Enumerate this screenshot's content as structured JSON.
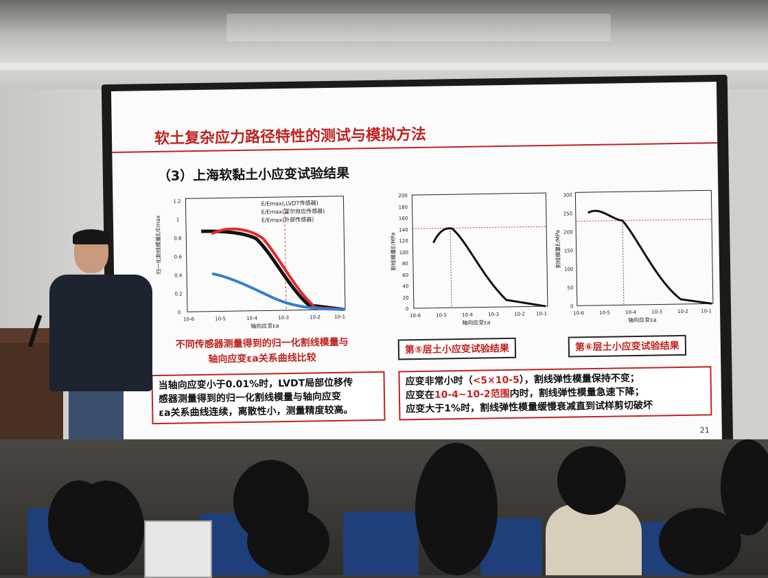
{
  "slide": {
    "title": "软土复杂应力路径特性的测试与模拟方法",
    "section": "（3）上海软黏土小应变试验结果",
    "page_number": "21",
    "left_chart": {
      "legend": [
        "E/Emax( LVDT传感器)",
        "E/Emax(霍尔效应传感器)",
        "E/Emax(外部传感器)"
      ],
      "ylabel": "归一化割线模量E/Emax",
      "xlabel": "轴向应变εa",
      "yticks": [
        "0",
        "0.2",
        "0.4",
        "0.6",
        "0.8",
        "1",
        "1.2"
      ],
      "xticks": [
        "10-6",
        "10-5",
        "10-4",
        "10-3",
        "10-2",
        "10-1"
      ],
      "caption_line1": "不同传感器测量得到的归一化割线模量与",
      "caption_line2": "轴向应变εa关系曲线比较"
    },
    "mid_chart": {
      "ylabel": "割线模量E/MPa",
      "xlabel": "轴向应变εa",
      "yticks": [
        "0",
        "20",
        "40",
        "60",
        "80",
        "100",
        "120",
        "140",
        "160",
        "180",
        "200"
      ],
      "xticks": [
        "10-6",
        "10-5",
        "10-4",
        "10-3",
        "10-2",
        "10-1"
      ],
      "caption": "第⑤层土小应变试验结果"
    },
    "right_chart": {
      "ylabel": "割线模量E/MPa",
      "xlabel": "轴向应变εa",
      "yticks": [
        "0",
        "50",
        "100",
        "150",
        "200",
        "250",
        "300"
      ],
      "xticks": [
        "10-6",
        "10-5",
        "10-4",
        "10-3",
        "10-2",
        "10-1"
      ],
      "caption": "第⑥层土小应变试验结果"
    },
    "note_left": {
      "line1": "当轴向应变小于0.01%时，LVDT局部位移传",
      "line2": "感器测量得到的归一化割线模量与轴向应变",
      "line3": "εa关系曲线连续，离散性小，测量精度较高。"
    },
    "note_right": {
      "line1a": "应变非常小时（",
      "line1b": "<5×10-5",
      "line1c": "），割线弹性模量保持不变；",
      "line2a": "应变在",
      "line2b": "10-4~10-2范围",
      "line2c": "内时，割线弹性模量急速下降；",
      "line3": "应变大于1%时，割线弹性模量缓慢衰减直到试样剪切破坏"
    }
  }
}
